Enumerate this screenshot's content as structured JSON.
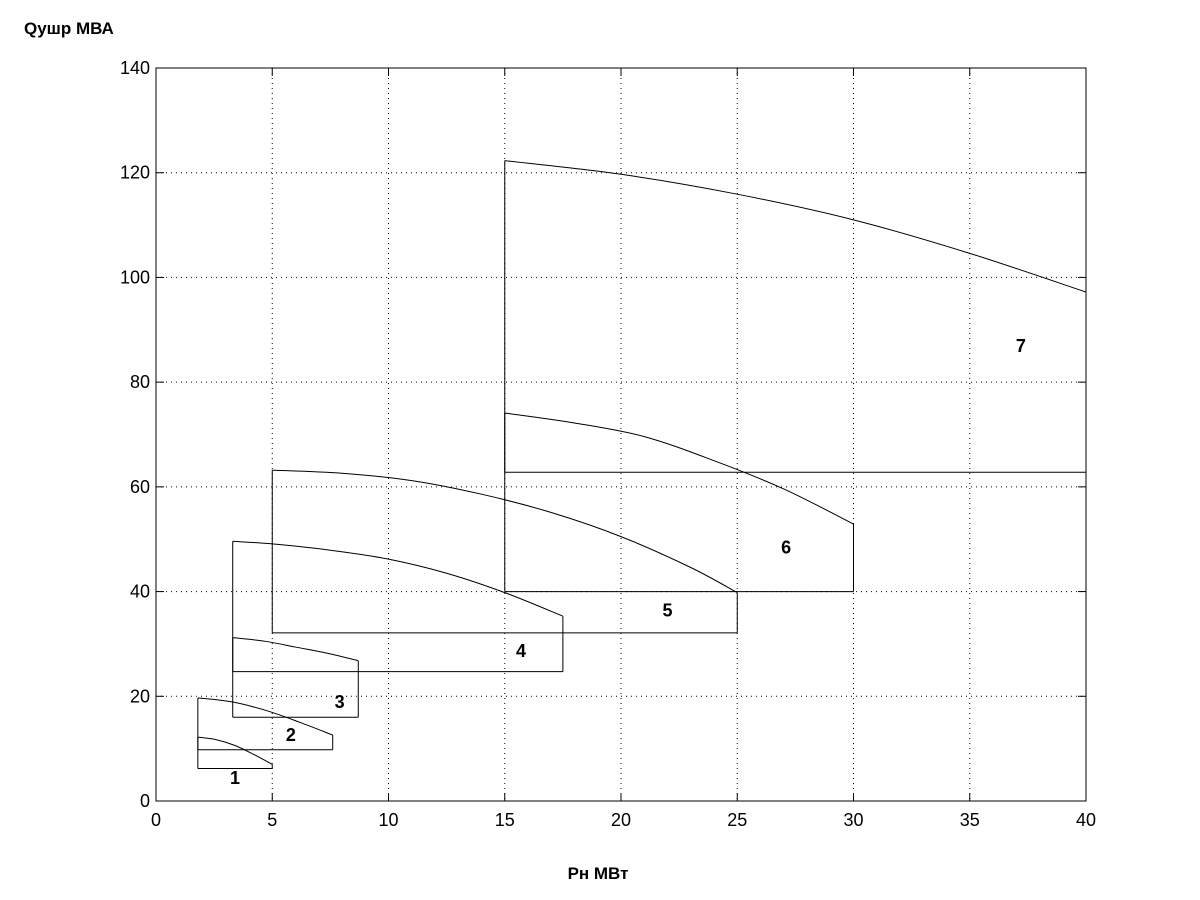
{
  "chart_data": {
    "type": "line",
    "ylabel": "Qушр  МВА",
    "xlabel": "Рн  МВт",
    "xlim": [
      0,
      40
    ],
    "ylim": [
      0,
      140
    ],
    "xticks": [
      0,
      5,
      10,
      15,
      20,
      25,
      30,
      35,
      40
    ],
    "yticks": [
      0,
      20,
      40,
      60,
      80,
      100,
      120,
      140
    ],
    "grid": true,
    "colors": {
      "line": "#000000",
      "background": "#ffffff"
    },
    "regions": [
      {
        "label": "1",
        "label_pos": [
          3.4,
          3.2
        ],
        "x": [
          1.8,
          5.0
        ],
        "q_min": 6.2,
        "curve_x": [
          1.8,
          2.6,
          3.4,
          4.2,
          5.0
        ],
        "curve_y": [
          12.2,
          11.7,
          10.6,
          8.9,
          7.0
        ]
      },
      {
        "label": "2",
        "label_pos": [
          5.8,
          11.5
        ],
        "x": [
          1.8,
          7.6
        ],
        "q_min": 9.8,
        "curve_x": [
          1.8,
          3.3,
          4.8,
          6.2,
          7.6
        ],
        "curve_y": [
          19.7,
          18.9,
          17.2,
          15.0,
          12.6
        ]
      },
      {
        "label": "3",
        "label_pos": [
          7.9,
          17.8
        ],
        "x": [
          3.3,
          8.7
        ],
        "q_min": 16.0,
        "curve_x": [
          3.3,
          4.7,
          6.0,
          7.4,
          8.7
        ],
        "curve_y": [
          31.2,
          30.5,
          29.4,
          28.2,
          26.8
        ]
      },
      {
        "label": "4",
        "label_pos": [
          15.7,
          27.5
        ],
        "x": [
          3.3,
          17.5
        ],
        "q_min": 24.7,
        "curve_x": [
          3.3,
          5.0,
          7.5,
          10.0,
          12.5,
          15.0,
          17.5
        ],
        "curve_y": [
          49.6,
          49.1,
          47.9,
          46.2,
          43.5,
          39.8,
          35.3
        ]
      },
      {
        "label": "5",
        "label_pos": [
          22.0,
          35.2
        ],
        "x": [
          5.0,
          25.0
        ],
        "q_min": 32.1,
        "curve_x": [
          5.0,
          8.0,
          11.0,
          14.0,
          17.0,
          20.0,
          23.0,
          25.0
        ],
        "curve_y": [
          63.2,
          62.6,
          61.2,
          58.6,
          55.1,
          50.5,
          44.6,
          39.8
        ]
      },
      {
        "label": "6",
        "label_pos": [
          27.1,
          47.3
        ],
        "x": [
          15.0,
          30.0
        ],
        "q_min": 40.0,
        "curve_x": [
          15.0,
          18.0,
          21.0,
          24.0,
          27.0,
          30.0
        ],
        "curve_y": [
          74.1,
          72.2,
          69.6,
          65.0,
          59.6,
          52.9
        ]
      },
      {
        "label": "7",
        "label_pos": [
          37.2,
          85.8
        ],
        "x": [
          15.0,
          40.0
        ],
        "q_min": 62.8,
        "curve_x": [
          15.0,
          20.0,
          25.0,
          30.0,
          35.0,
          40.0
        ],
        "curve_y": [
          122.3,
          119.7,
          115.9,
          111.0,
          104.6,
          97.2
        ]
      }
    ]
  }
}
